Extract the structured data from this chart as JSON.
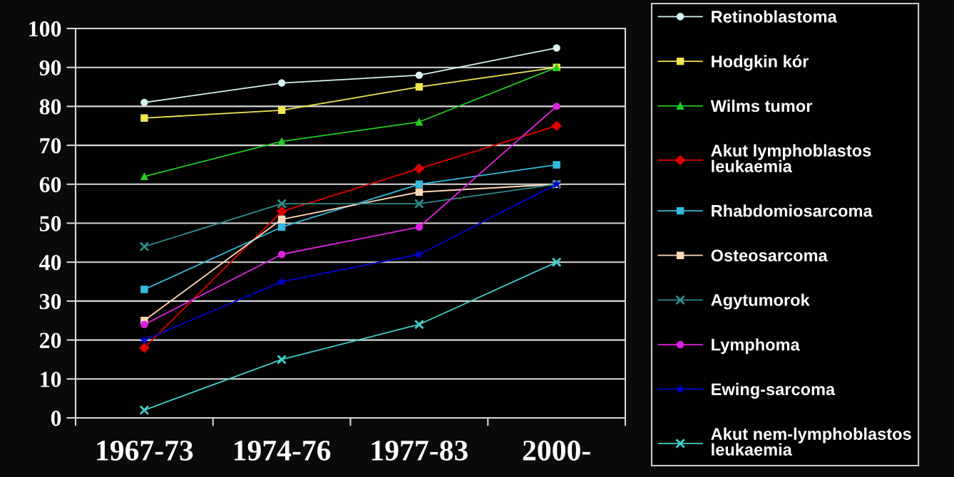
{
  "chart_data": {
    "type": "line",
    "categories": [
      "1967-73",
      "1974-76",
      "1977-83",
      "2000-"
    ],
    "series": [
      {
        "name": "Retinoblastoma",
        "color": "#d8f2f2",
        "marker": "circle",
        "values": [
          81,
          86,
          88,
          95
        ]
      },
      {
        "name": "Hodgkin kór",
        "color": "#f2e650",
        "marker": "square",
        "values": [
          77,
          79,
          85,
          90
        ]
      },
      {
        "name": "Wilms tumor",
        "color": "#22cc22",
        "marker": "triangle",
        "values": [
          62,
          71,
          76,
          90
        ]
      },
      {
        "name": "Akut lymphoblastos leukaemia",
        "color": "#e00000",
        "marker": "diamond",
        "values": [
          18,
          53,
          64,
          75
        ]
      },
      {
        "name": "Rhabdomiosarcoma",
        "color": "#33bbdd",
        "marker": "square",
        "values": [
          33,
          49,
          60,
          65
        ]
      },
      {
        "name": "Osteosarcoma",
        "color": "#ffd8b8",
        "marker": "square",
        "values": [
          25,
          51,
          58,
          60
        ]
      },
      {
        "name": "Agytumorok",
        "color": "#2e8b8b",
        "marker": "cross",
        "values": [
          44,
          55,
          55,
          60
        ]
      },
      {
        "name": "Lymphoma",
        "color": "#e020e0",
        "marker": "circle",
        "values": [
          24,
          42,
          49,
          80
        ]
      },
      {
        "name": "Ewing-sarcoma",
        "color": "#0000cc",
        "marker": "star",
        "values": [
          20,
          35,
          42,
          60
        ]
      },
      {
        "name": "Akut nem-lymphoblastos leukaemia",
        "color": "#40d0c8",
        "marker": "cross",
        "values": [
          2,
          15,
          24,
          40
        ]
      }
    ],
    "ylim": [
      0,
      100
    ],
    "yticks": [
      0,
      10,
      20,
      30,
      40,
      50,
      60,
      70,
      80,
      90,
      100
    ],
    "grid": "y",
    "legend": "right",
    "line_style": "solid"
  }
}
